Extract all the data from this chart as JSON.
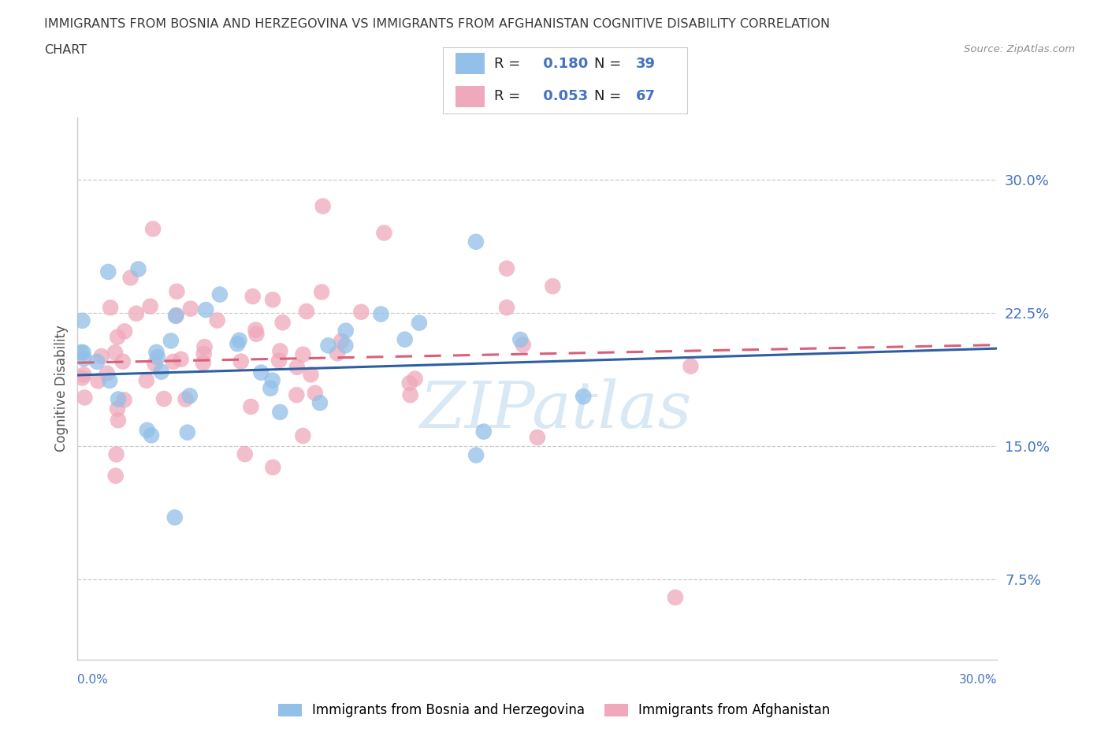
{
  "title_line1": "IMMIGRANTS FROM BOSNIA AND HERZEGOVINA VS IMMIGRANTS FROM AFGHANISTAN COGNITIVE DISABILITY CORRELATION",
  "title_line2": "CHART",
  "source": "Source: ZipAtlas.com",
  "ylabel": "Cognitive Disability",
  "ytick_labels": [
    "7.5%",
    "15.0%",
    "22.5%",
    "30.0%"
  ],
  "ytick_values": [
    0.075,
    0.15,
    0.225,
    0.3
  ],
  "xlim": [
    0.0,
    0.3
  ],
  "ylim": [
    0.03,
    0.335
  ],
  "legend_label1": "Immigrants from Bosnia and Herzegovina",
  "legend_label2": "Immigrants from Afghanistan",
  "R1": 0.18,
  "N1": 39,
  "R2": 0.053,
  "N2": 67,
  "color1": "#92c0e8",
  "color2": "#f0a8bc",
  "line_color1": "#2e5fa3",
  "line_color2": "#d9607a",
  "watermark_color": "#d8e8f5",
  "background_color": "#ffffff",
  "title_color": "#3a3a3a",
  "title_fontsize": 11.5,
  "axis_label_color": "#555555",
  "tick_color": "#4472c4",
  "source_color": "#909090",
  "legend_box_color": "#cccccc"
}
